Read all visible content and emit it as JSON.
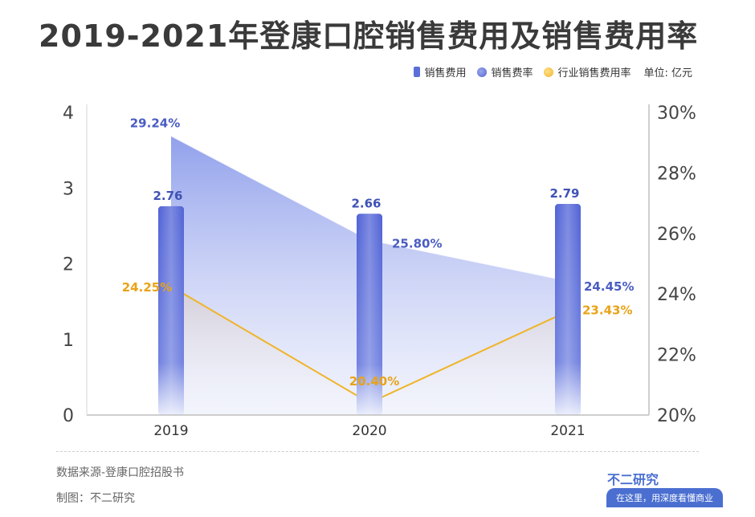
{
  "title": "2019-2021年登康口腔销售费用及销售费用率",
  "legend": {
    "items": [
      {
        "label": "销售费用",
        "kind": "bar",
        "color": "#5a6fd8"
      },
      {
        "label": "销售费率",
        "kind": "dot",
        "color": "#6677d6"
      },
      {
        "label": "行业销售费用率",
        "kind": "dot",
        "color": "#f0b429"
      }
    ],
    "unit": "单位: 亿元"
  },
  "footer": {
    "source": "数据来源-登康口腔招股书",
    "maker": "制图：不二研究",
    "brand": "不二研究",
    "slogan": "在这里，用深度看懂商业"
  },
  "colors": {
    "bar": "#5a6fd8",
    "rate": "#6a7ad6",
    "industry": "#f0b429"
  },
  "chart_data": {
    "type": "bar",
    "categories": [
      "2019",
      "2020",
      "2021"
    ],
    "series": [
      {
        "name": "销售费用",
        "type": "bar",
        "axis": "left",
        "values": [
          2.76,
          2.66,
          2.79
        ],
        "labels": [
          "2.76",
          "2.66",
          "2.79"
        ]
      },
      {
        "name": "销售费率",
        "type": "area",
        "axis": "right",
        "values": [
          29.24,
          25.8,
          24.45
        ],
        "labels": [
          "29.24%",
          "25.80%",
          "24.45%"
        ]
      },
      {
        "name": "行业销售费用率",
        "type": "area",
        "axis": "right",
        "values": [
          24.25,
          20.4,
          23.43
        ],
        "labels": [
          "24.25%",
          "20.40%",
          "23.43%"
        ]
      }
    ],
    "y_left": {
      "range": [
        0,
        4
      ],
      "ticks": [
        "0",
        "1",
        "2",
        "3",
        "4"
      ]
    },
    "y_right": {
      "range": [
        20,
        30
      ],
      "ticks": [
        "20%",
        "22%",
        "24%",
        "26%",
        "28%",
        "30%"
      ]
    },
    "grid": false,
    "legend_position": "top-right"
  }
}
